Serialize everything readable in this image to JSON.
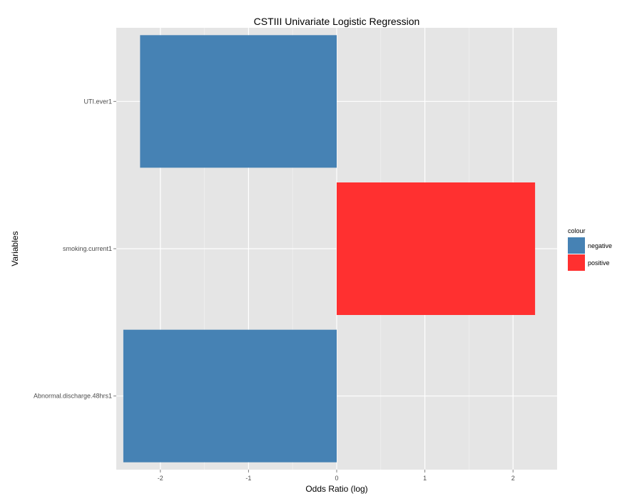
{
  "chart_data": {
    "type": "bar",
    "orientation": "horizontal",
    "title": "CSTIII Univariate Logistic Regression",
    "xlabel": "Odds Ratio (log)",
    "ylabel": "Variables",
    "xlim": [
      -2.5,
      2.5
    ],
    "x_ticks": [
      -2,
      -1,
      0,
      1,
      2
    ],
    "categories": [
      "UTI.ever1",
      "smoking.current1",
      "Abnormal.discharge.48hrs1"
    ],
    "values": [
      -2.23,
      2.25,
      -2.42
    ],
    "bar_groups": [
      "negative",
      "positive",
      "negative"
    ],
    "legend": {
      "title": "colour",
      "placement": "right",
      "entries": [
        {
          "label": "negative",
          "color": "#4682b4"
        },
        {
          "label": "positive",
          "color": "#ff3030"
        }
      ]
    },
    "grid": true
  },
  "colors": {
    "panel_background": "#e5e5e5",
    "grid_major": "#ffffff",
    "grid_minor": "#f2f2f2"
  }
}
